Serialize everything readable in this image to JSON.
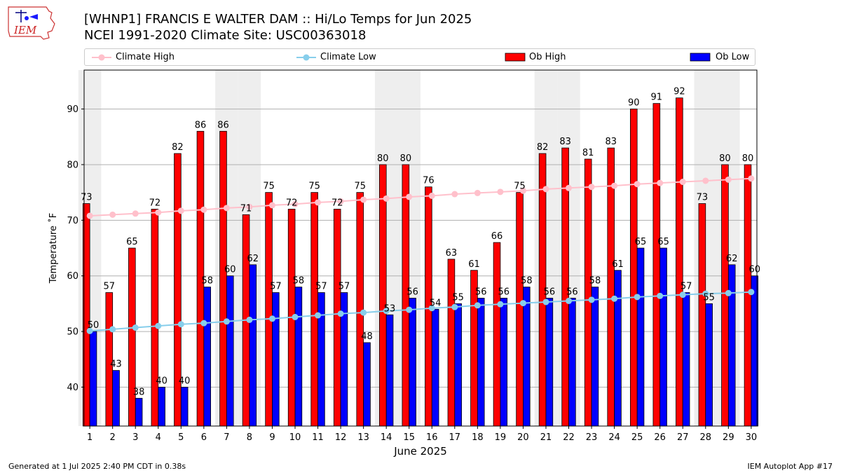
{
  "title": "[WHNP1] FRANCIS E WALTER DAM :: Hi/Lo Temps for Jun 2025",
  "subtitle": "NCEI 1991-2020 Climate Site: USC00363018",
  "logo_text": "IEM",
  "footer_left": "Generated at 1 Jul 2025 2:40 PM CDT in 0.38s",
  "footer_right": "IEM Autoplot App #17",
  "colors": {
    "ob_high": "#ff0000",
    "ob_low": "#0000ff",
    "climate_high": "#ffc0cb",
    "climate_low": "#87ceeb",
    "weekend_shade": "#eeeeee",
    "grid": "#b0b0b0"
  },
  "legend": [
    {
      "label": "Climate High",
      "marker": "line-dot",
      "color": "#ffc0cb"
    },
    {
      "label": "Climate Low",
      "marker": "line-dot",
      "color": "#87ceeb"
    },
    {
      "label": "Ob High",
      "marker": "rect",
      "color": "#ff0000"
    },
    {
      "label": "Ob Low",
      "marker": "rect",
      "color": "#0000ff"
    }
  ],
  "chart_data": {
    "type": "bar",
    "title": "[WHNP1] FRANCIS E WALTER DAM :: Hi/Lo Temps for Jun 2025",
    "xlabel": "June 2025",
    "ylabel": "Temperature ˚F",
    "ylim": [
      33,
      97
    ],
    "yticks": [
      40,
      50,
      60,
      70,
      80,
      90
    ],
    "grid": "horizontal",
    "legend_position": "top",
    "categories": [
      "1",
      "2",
      "3",
      "4",
      "5",
      "6",
      "7",
      "8",
      "9",
      "10",
      "11",
      "12",
      "13",
      "14",
      "15",
      "16",
      "17",
      "18",
      "19",
      "20",
      "21",
      "22",
      "23",
      "24",
      "25",
      "26",
      "27",
      "28",
      "29",
      "30"
    ],
    "shaded_days": [
      "1",
      "7",
      "8",
      "14",
      "15",
      "21",
      "22",
      "28",
      "29"
    ],
    "series": [
      {
        "name": "Ob High",
        "kind": "bar",
        "values": [
          73,
          57,
          65,
          72,
          82,
          86,
          86,
          71,
          75,
          72,
          75,
          72,
          75,
          80,
          80,
          76,
          63,
          61,
          66,
          75,
          82,
          83,
          81,
          83,
          90,
          91,
          92,
          73,
          80,
          80
        ]
      },
      {
        "name": "Ob Low",
        "kind": "bar",
        "values": [
          50,
          43,
          38,
          40,
          40,
          58,
          60,
          62,
          57,
          58,
          57,
          57,
          48,
          53,
          56,
          54,
          55,
          56,
          56,
          58,
          56,
          56,
          58,
          61,
          65,
          65,
          57,
          55,
          62,
          60
        ]
      },
      {
        "name": "Climate High",
        "kind": "line",
        "values": [
          70.8,
          71.0,
          71.2,
          71.4,
          71.7,
          71.9,
          72.2,
          72.4,
          72.7,
          72.9,
          73.2,
          73.4,
          73.7,
          73.9,
          74.2,
          74.4,
          74.7,
          74.9,
          75.1,
          75.3,
          75.6,
          75.8,
          76.0,
          76.2,
          76.5,
          76.7,
          76.9,
          77.1,
          77.3,
          77.5
        ]
      },
      {
        "name": "Climate Low",
        "kind": "line",
        "values": [
          50.1,
          50.4,
          50.7,
          51.0,
          51.3,
          51.5,
          51.8,
          52.1,
          52.3,
          52.6,
          52.9,
          53.2,
          53.4,
          53.7,
          53.9,
          54.2,
          54.4,
          54.7,
          54.9,
          55.1,
          55.3,
          55.5,
          55.7,
          55.9,
          56.2,
          56.4,
          56.6,
          56.8,
          56.9,
          57.1
        ]
      }
    ]
  }
}
